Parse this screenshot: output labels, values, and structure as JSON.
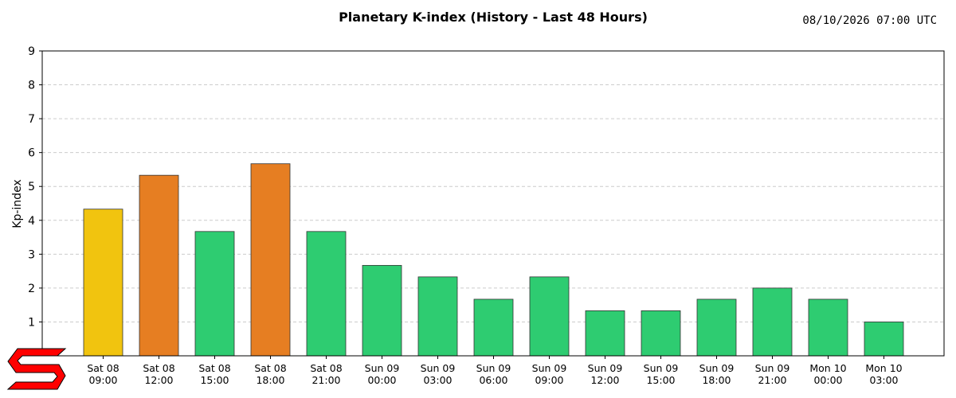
{
  "header": {
    "title": "Planetary K-index (History - Last 48 Hours)",
    "timestamp": "08/10/2026 07:00 UTC"
  },
  "colors": {
    "quiet": "#2ecc71",
    "unsettled": "#f1c40f",
    "storm": "#e67e22",
    "logo": "#ff0000"
  },
  "chart_data": {
    "type": "bar",
    "title": "Planetary K-index (History - Last 48 Hours)",
    "xlabel": "",
    "ylabel": "Kp-index",
    "ylim": [
      0,
      9
    ],
    "yticks": [
      1,
      2,
      3,
      4,
      5,
      6,
      7,
      8,
      9
    ],
    "grid": "horizontal dashed",
    "categories": [
      [
        "Sat 08",
        "09:00"
      ],
      [
        "Sat 08",
        "12:00"
      ],
      [
        "Sat 08",
        "15:00"
      ],
      [
        "Sat 08",
        "18:00"
      ],
      [
        "Sat 08",
        "21:00"
      ],
      [
        "Sun 09",
        "00:00"
      ],
      [
        "Sun 09",
        "03:00"
      ],
      [
        "Sun 09",
        "06:00"
      ],
      [
        "Sun 09",
        "09:00"
      ],
      [
        "Sun 09",
        "12:00"
      ],
      [
        "Sun 09",
        "15:00"
      ],
      [
        "Sun 09",
        "18:00"
      ],
      [
        "Sun 09",
        "21:00"
      ],
      [
        "Mon 10",
        "00:00"
      ],
      [
        "Mon 10",
        "03:00"
      ]
    ],
    "values": [
      4.33,
      5.33,
      3.67,
      5.67,
      3.67,
      2.67,
      2.33,
      1.67,
      2.33,
      1.33,
      1.33,
      1.67,
      2.0,
      1.67,
      1.0
    ],
    "bar_colors": [
      "#f1c40f",
      "#e67e22",
      "#2ecc71",
      "#e67e22",
      "#2ecc71",
      "#2ecc71",
      "#2ecc71",
      "#2ecc71",
      "#2ecc71",
      "#2ecc71",
      "#2ecc71",
      "#2ecc71",
      "#2ecc71",
      "#2ecc71",
      "#2ecc71"
    ]
  }
}
